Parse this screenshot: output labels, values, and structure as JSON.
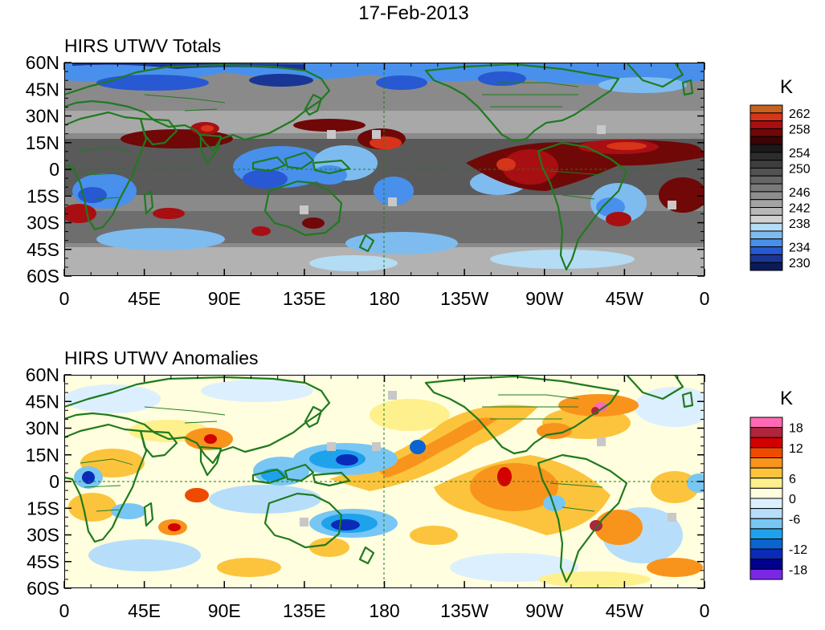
{
  "title": "17-Feb-2013",
  "colors": {
    "coast": "#1f7a1f",
    "missing": "#c8c8c8"
  },
  "chart_data": [
    {
      "type": "heatmap",
      "title": "HIRS UTWV Totals",
      "xlabel": "",
      "ylabel": "",
      "x_ticks": [
        "0",
        "45E",
        "90E",
        "135E",
        "180",
        "135W",
        "90W",
        "45W",
        "0"
      ],
      "y_ticks": [
        "60N",
        "45N",
        "30N",
        "15N",
        "0",
        "15S",
        "30S",
        "45S",
        "60S"
      ],
      "xlim_deg_east": [
        0,
        360
      ],
      "ylim_deg": [
        -60,
        60
      ],
      "colorbar": {
        "unit": "K",
        "labels": [
          "262",
          "258",
          "254",
          "250",
          "246",
          "242",
          "238",
          "234",
          "230"
        ],
        "colors": [
          "#c8621e",
          "#d8341a",
          "#a80f12",
          "#700808",
          "#3c0404",
          "#1a1a1a",
          "#2c2c2c",
          "#3e3e3e",
          "#525252",
          "#666666",
          "#7a7a7a",
          "#8e8e8e",
          "#a4a4a4",
          "#b8b8b8",
          "#d2d2d2",
          "#b4dcf4",
          "#7ebcf0",
          "#4890ec",
          "#2858d2",
          "#1a3694",
          "#0c1a5a"
        ]
      }
    },
    {
      "type": "heatmap",
      "title": "HIRS UTWV Anomalies",
      "xlabel": "",
      "ylabel": "",
      "x_ticks": [
        "0",
        "45E",
        "90E",
        "135E",
        "180",
        "135W",
        "90W",
        "45W",
        "0"
      ],
      "y_ticks": [
        "60N",
        "45N",
        "30N",
        "15N",
        "0",
        "15S",
        "30S",
        "45S",
        "60S"
      ],
      "xlim_deg_east": [
        0,
        360
      ],
      "ylim_deg": [
        -60,
        60
      ],
      "colorbar": {
        "unit": "K",
        "labels": [
          "18",
          "12",
          "6",
          "0",
          "-6",
          "-12",
          "-18"
        ],
        "colors": [
          "#ff69b4",
          "#b0243c",
          "#d40000",
          "#f04a00",
          "#f8941c",
          "#fcc43c",
          "#fef08c",
          "#fffede",
          "#dcefff",
          "#b6defa",
          "#78c6f4",
          "#1ea2ec",
          "#0b64d0",
          "#0a2ab8",
          "#00008c",
          "#7a28e6"
        ]
      }
    }
  ]
}
